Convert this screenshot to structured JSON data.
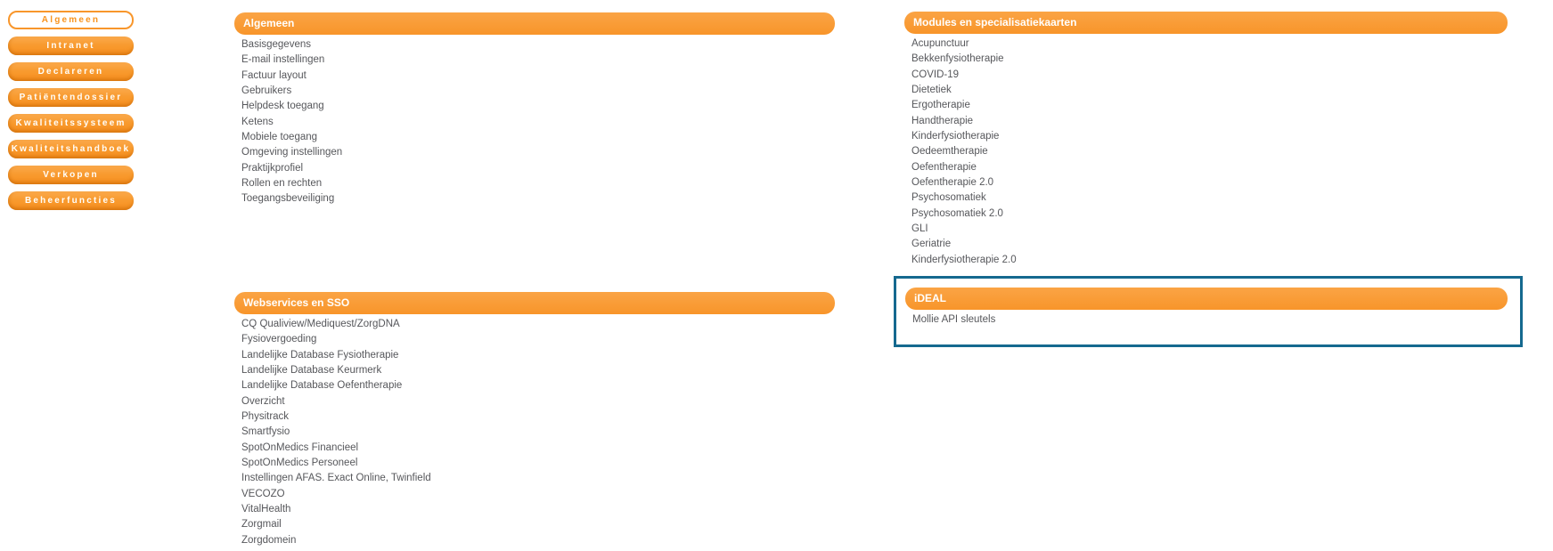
{
  "colors": {
    "accent_orange": "#F8952A",
    "accent_orange_light": "#FAA445",
    "accent_orange_dark": "#E8861C",
    "selected_button_text": "#F8941F",
    "highlight_border_blue": "#15698F",
    "list_item_text": "#56575B",
    "header_text": "#FFFFFF"
  },
  "sidebar": {
    "items": [
      {
        "label": "Algemeen",
        "selected": true
      },
      {
        "label": "Intranet"
      },
      {
        "label": "Declareren"
      },
      {
        "label": "Patiëntendossier"
      },
      {
        "label": "Kwaliteitssysteem"
      },
      {
        "label": "Kwaliteitshandboek"
      },
      {
        "label": "Verkopen"
      },
      {
        "label": "Beheerfuncties"
      }
    ]
  },
  "sections": {
    "algemeen": {
      "title": "Algemeen",
      "items": [
        "Basisgegevens",
        "E-mail instellingen",
        "Factuur layout",
        "Gebruikers",
        "Helpdesk toegang",
        "Ketens",
        "Mobiele toegang",
        "Omgeving instellingen",
        "Praktijkprofiel",
        "Rollen en rechten",
        "Toegangsbeveiliging"
      ]
    },
    "modules": {
      "title": "Modules en specialisatiekaarten",
      "items": [
        "Acupunctuur",
        "Bekkenfysiotherapie",
        "COVID-19",
        "Dietetiek",
        "Ergotherapie",
        "Handtherapie",
        "Kinderfysiotherapie",
        "Oedeemtherapie",
        "Oefentherapie",
        "Oefentherapie 2.0",
        "Psychosomatiek",
        "Psychosomatiek 2.0",
        "GLI",
        "Geriatrie",
        "Kinderfysiotherapie 2.0"
      ]
    },
    "webservices": {
      "title": "Webservices en SSO",
      "items": [
        "CQ Qualiview/Mediquest/ZorgDNA",
        "Fysiovergoeding",
        "Landelijke Database Fysiotherapie",
        "Landelijke Database Keurmerk",
        "Landelijke Database Oefentherapie",
        "Overzicht",
        "Physitrack",
        "Smartfysio",
        "SpotOnMedics Financieel",
        "SpotOnMedics Personeel",
        "Instellingen AFAS. Exact Online, Twinfield",
        "VECOZO",
        "VitalHealth",
        "Zorgmail",
        "Zorgdomein"
      ]
    },
    "ideal": {
      "title": "iDEAL",
      "highlighted": true,
      "items": [
        "Mollie API sleutels"
      ]
    }
  }
}
